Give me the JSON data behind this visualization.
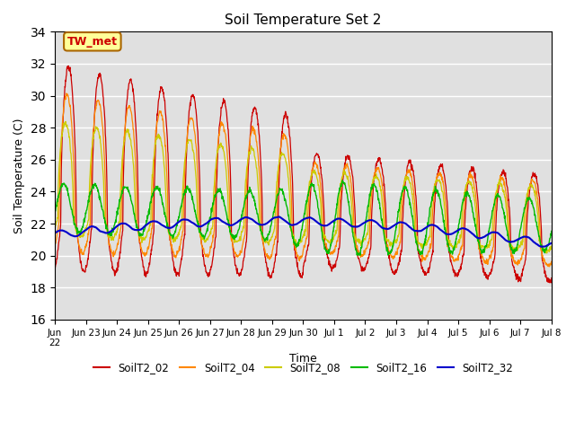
{
  "title": "Soil Temperature Set 2",
  "xlabel": "Time",
  "ylabel": "Soil Temperature (C)",
  "ylim": [
    16,
    34
  ],
  "yticks": [
    16,
    18,
    20,
    22,
    24,
    26,
    28,
    30,
    32,
    34
  ],
  "bg_color": "#e0e0e0",
  "legend_labels": [
    "SoilT2_02",
    "SoilT2_04",
    "SoilT2_08",
    "SoilT2_16",
    "SoilT2_32"
  ],
  "line_colors": [
    "#cc0000",
    "#ff8800",
    "#cccc00",
    "#00bb00",
    "#0000cc"
  ],
  "annotation_text": "TW_met",
  "annotation_bg": "#ffff99",
  "annotation_border": "#aa6600",
  "xtick_labels": [
    "Jun 23",
    "Jun 24",
    "Jun 25",
    "Jun 26",
    "Jun 27",
    "Jun 28",
    "Jun 29",
    "Jun 30",
    "Jul 1",
    "Jul 2",
    "Jul 3",
    "Jul 4",
    "Jul 5",
    "Jul 6",
    "Jul 7",
    "Jul 8"
  ],
  "xlim_left_label": "Jun\n22"
}
